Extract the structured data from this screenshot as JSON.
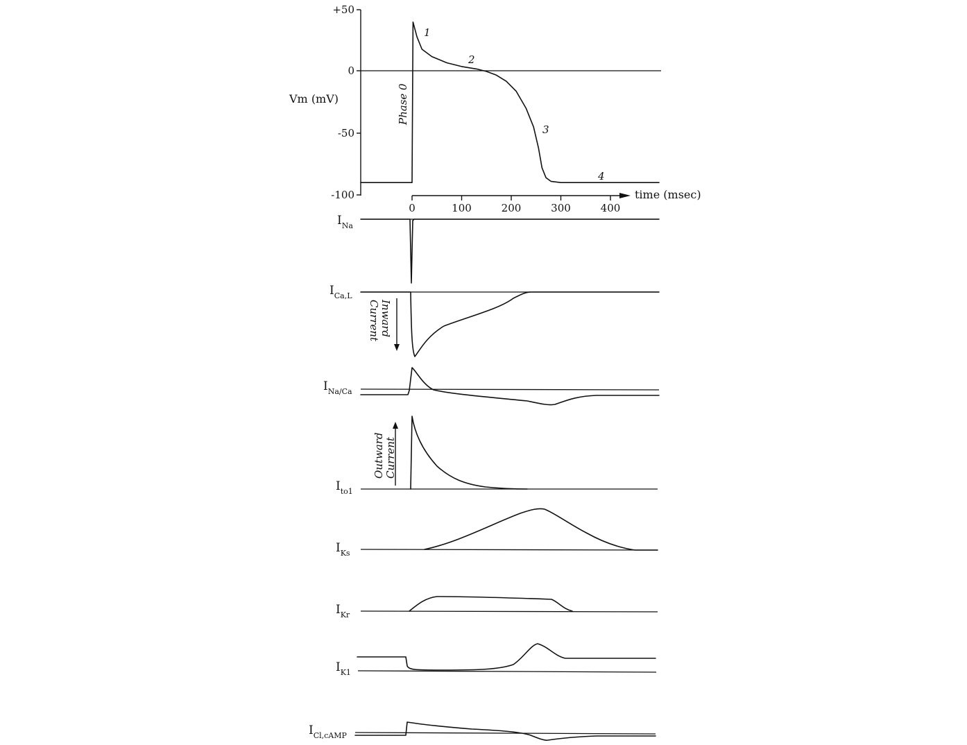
{
  "chart_data": {
    "type": "line",
    "ylabel": "Vm (mV)",
    "xlabel": "time (msec)",
    "ylim": [
      -100,
      50
    ],
    "xlim": [
      0,
      400
    ],
    "y_ticks": [
      "+50",
      "0",
      "-50",
      "-100"
    ],
    "x_ticks": [
      "0",
      "100",
      "200",
      "300",
      "400"
    ],
    "phase_label": "Phase 0",
    "phase_numbers": [
      "1",
      "2",
      "3",
      "4"
    ],
    "action_potential": {
      "x": [
        0,
        2,
        10,
        20,
        40,
        70,
        100,
        130,
        150,
        170,
        190,
        210,
        230,
        245,
        255,
        262,
        270,
        280,
        300,
        350,
        400
      ],
      "y": [
        -90,
        40,
        28,
        18,
        12,
        7,
        4,
        2,
        0,
        -3,
        -8,
        -16,
        -30,
        -45,
        -62,
        -78,
        -86,
        -89,
        -90,
        -90,
        -90
      ]
    },
    "inward_current_label": [
      "Inward",
      "Current"
    ],
    "outward_current_label": [
      "Outward",
      "Current"
    ],
    "currents": [
      {
        "name": "I",
        "sub": "Na"
      },
      {
        "name": "I",
        "sub": "Ca,L"
      },
      {
        "name": "I",
        "sub": "Na/Ca"
      },
      {
        "name": "I",
        "sub": "to1"
      },
      {
        "name": "I",
        "sub": "Ks"
      },
      {
        "name": "I",
        "sub": "Kr"
      },
      {
        "name": "I",
        "sub": "K1"
      },
      {
        "name": "I",
        "sub": "Cl,cAMP"
      }
    ]
  }
}
